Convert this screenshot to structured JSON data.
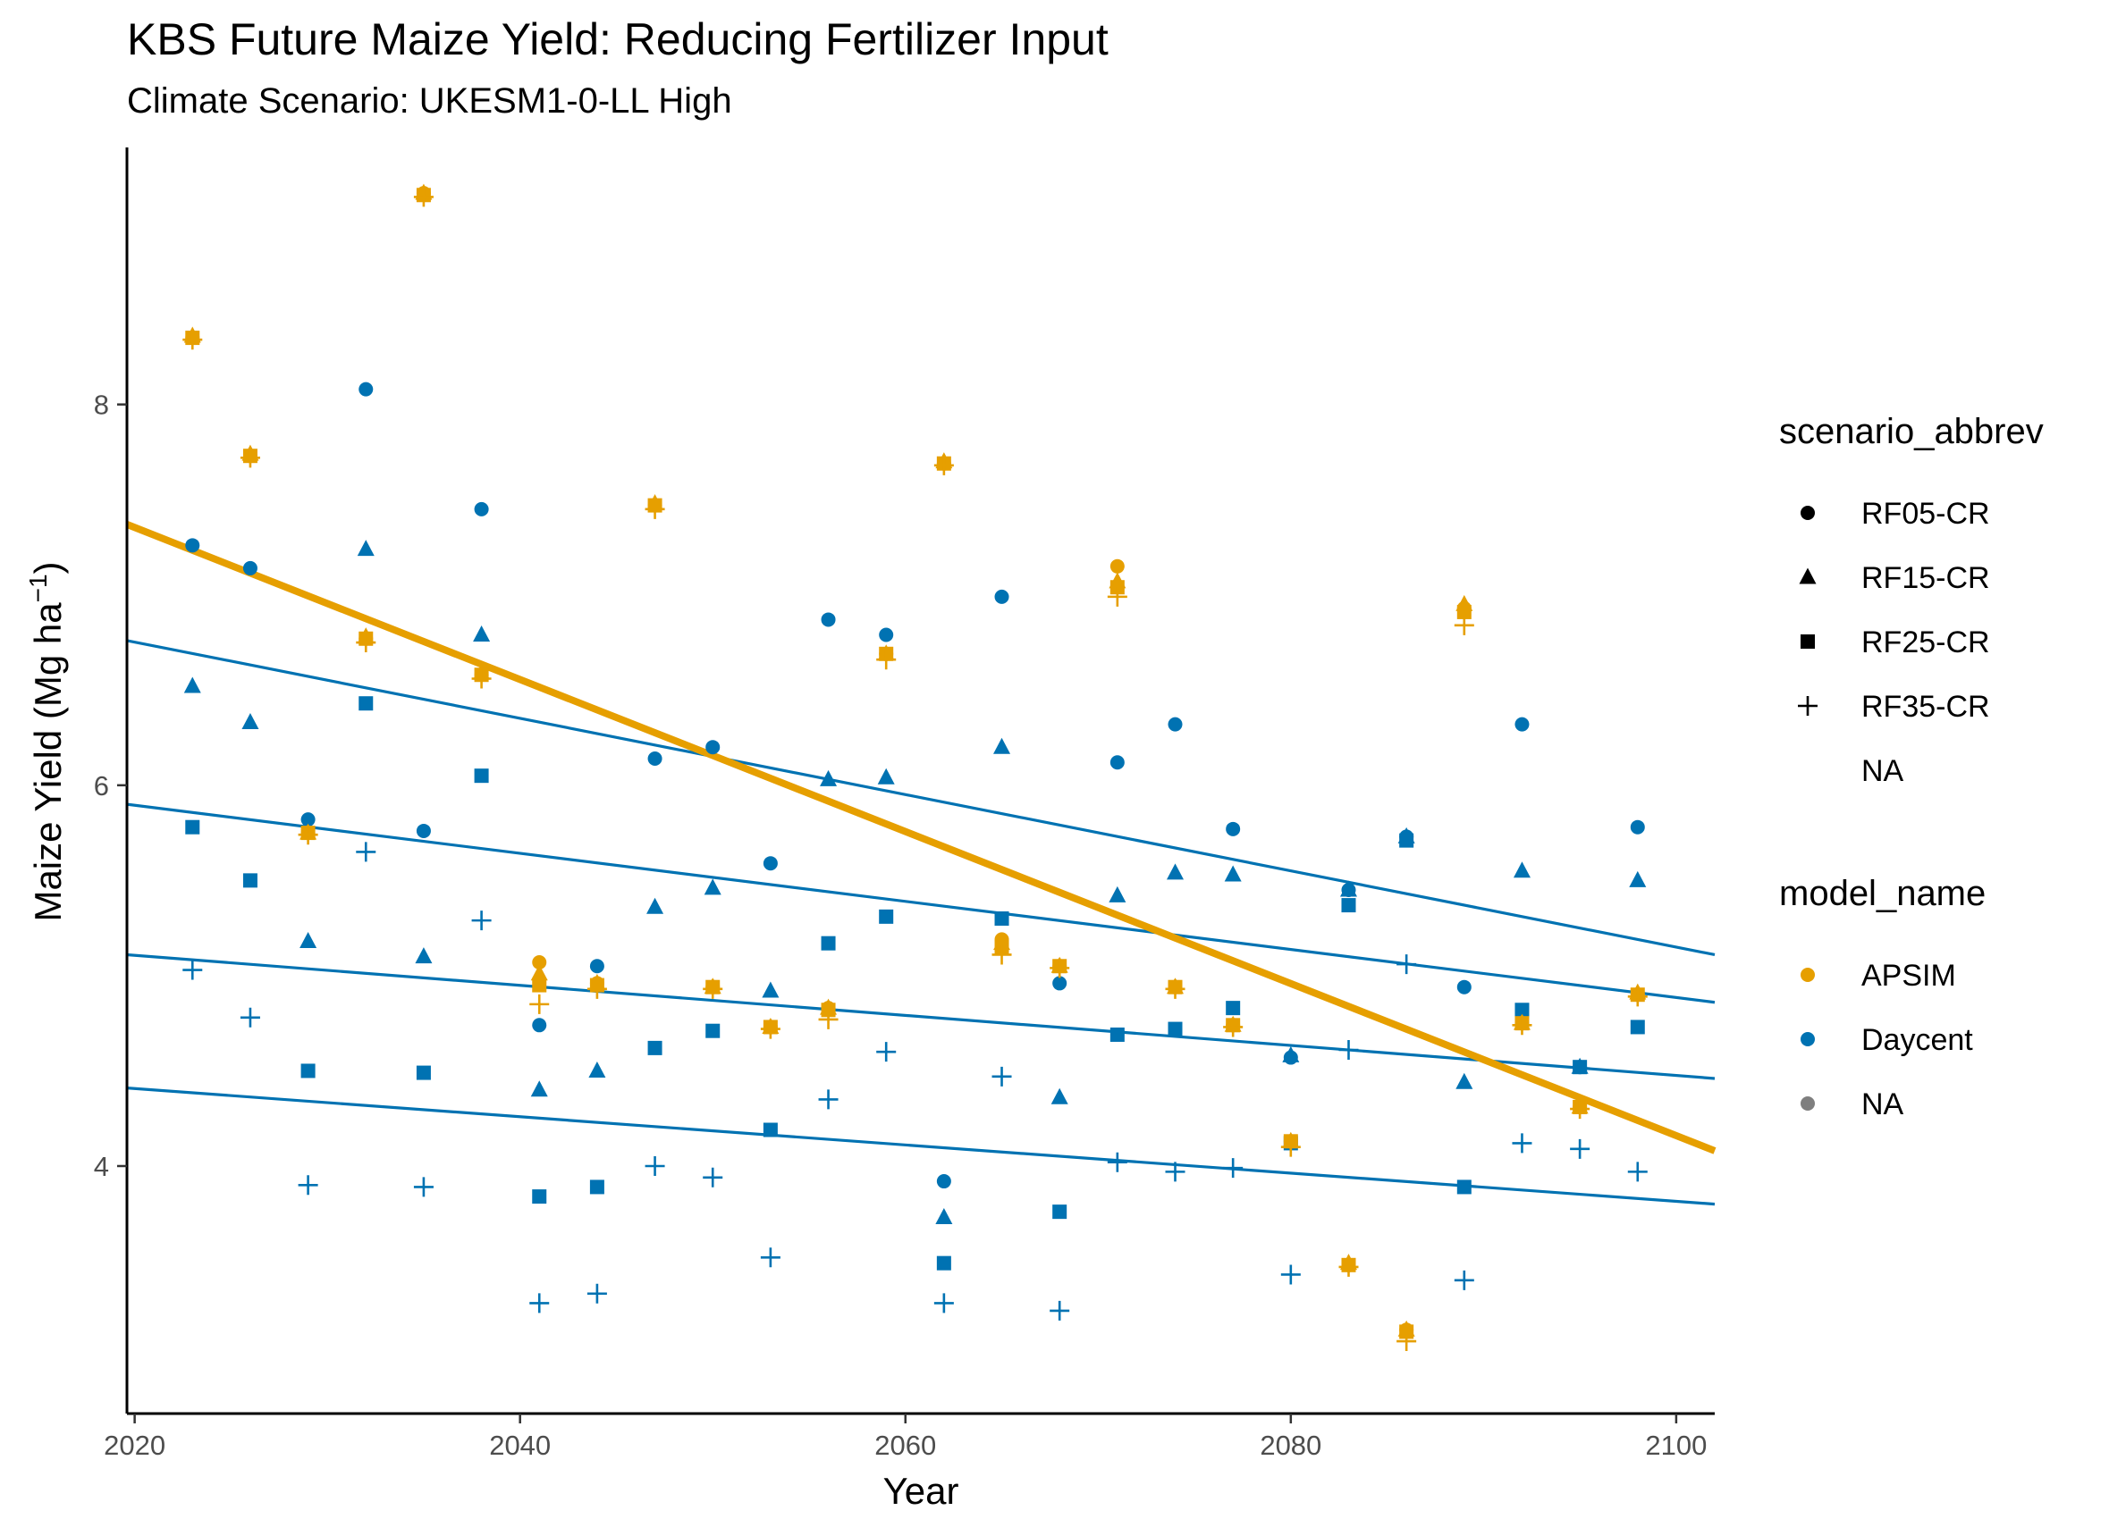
{
  "chart_data": {
    "type": "scatter",
    "title": "KBS Future Maize Yield: Reducing Fertilizer Input",
    "subtitle": "Climate Scenario: UKESM1-0-LL High",
    "xlabel": "Year",
    "ylabel": "Maize Yield (Mg ha",
    "ylabel_unit_sup": "−1",
    "ylabel_tail": ")",
    "xlim": [
      2019.6,
      2102.0
    ],
    "ylim": [
      2.7,
      9.35
    ],
    "xticks": [
      2020,
      2040,
      2060,
      2080,
      2100
    ],
    "xtick_labels": [
      "2020",
      "2040",
      "2060",
      "2080",
      "2100"
    ],
    "yticks": [
      4,
      6,
      8
    ],
    "ytick_labels": [
      "4",
      "6",
      "8"
    ],
    "grid": false,
    "colors": {
      "APSIM": "#E69F00",
      "Daycent": "#0072B2",
      "NA": "#7f7f7f"
    },
    "legends": [
      {
        "title": "scenario_abbrev",
        "items": [
          {
            "label": "RF05-CR",
            "shape": "circle"
          },
          {
            "label": "RF15-CR",
            "shape": "triangle"
          },
          {
            "label": "RF25-CR",
            "shape": "square"
          },
          {
            "label": "RF35-CR",
            "shape": "plus"
          },
          {
            "label": "NA",
            "shape": "none"
          }
        ]
      },
      {
        "title": "model_name",
        "items": [
          {
            "label": "APSIM",
            "color": "#E69F00"
          },
          {
            "label": "Daycent",
            "color": "#0072B2"
          },
          {
            "label": "NA",
            "color": "#7f7f7f"
          }
        ]
      }
    ],
    "legend_position": "right",
    "trend_lines": [
      {
        "model": "APSIM",
        "x": [
          2019.6,
          2102.0
        ],
        "y": [
          7.37,
          4.08
        ],
        "width": "thick"
      },
      {
        "model": "Daycent",
        "scenario": "RF05-CR",
        "x": [
          2019.6,
          2102.0
        ],
        "y": [
          6.76,
          5.11
        ]
      },
      {
        "model": "Daycent",
        "scenario": "RF15-CR",
        "x": [
          2019.6,
          2102.0
        ],
        "y": [
          5.9,
          4.86
        ]
      },
      {
        "model": "Daycent",
        "scenario": "RF25-CR",
        "x": [
          2019.6,
          2102.0
        ],
        "y": [
          5.11,
          4.46
        ]
      },
      {
        "model": "Daycent",
        "scenario": "RF35-CR",
        "x": [
          2019.6,
          2102.0
        ],
        "y": [
          4.41,
          3.8
        ]
      }
    ],
    "series": [
      {
        "model": "APSIM",
        "scenario": "RF05-CR",
        "shape": "circle",
        "x": [
          2023,
          2026,
          2029,
          2032,
          2035,
          2038,
          2041,
          2044,
          2047,
          2050,
          2053,
          2056,
          2059,
          2062,
          2065,
          2068,
          2071,
          2074,
          2077,
          2080,
          2083,
          2086,
          2089,
          2092,
          2095,
          2098
        ],
        "y": [
          8.35,
          7.73,
          5.75,
          6.77,
          9.11,
          6.58,
          5.07,
          4.96,
          7.47,
          4.94,
          4.73,
          4.83,
          6.69,
          7.69,
          5.19,
          5.05,
          7.15,
          4.94,
          4.74,
          4.13,
          3.48,
          3.14,
          6.93,
          4.75,
          4.31,
          4.9
        ]
      },
      {
        "model": "APSIM",
        "scenario": "RF15-CR",
        "shape": "triangle",
        "x": [
          2023,
          2026,
          2029,
          2032,
          2035,
          2038,
          2041,
          2044,
          2047,
          2050,
          2053,
          2056,
          2059,
          2062,
          2065,
          2068,
          2071,
          2074,
          2077,
          2080,
          2083,
          2086,
          2089,
          2092,
          2095,
          2098
        ],
        "y": [
          8.36,
          7.74,
          5.75,
          6.78,
          9.11,
          6.59,
          5.01,
          4.96,
          7.48,
          4.94,
          4.73,
          4.83,
          6.69,
          7.7,
          5.17,
          5.05,
          7.07,
          4.94,
          4.74,
          4.13,
          3.49,
          3.14,
          6.95,
          4.75,
          4.31,
          4.91
        ]
      },
      {
        "model": "APSIM",
        "scenario": "RF25-CR",
        "shape": "square",
        "x": [
          2023,
          2026,
          2029,
          2032,
          2035,
          2038,
          2041,
          2044,
          2047,
          2050,
          2053,
          2056,
          2059,
          2062,
          2065,
          2068,
          2071,
          2074,
          2077,
          2080,
          2083,
          2086,
          2089,
          2092,
          2095,
          2098
        ],
        "y": [
          8.35,
          7.73,
          5.75,
          6.77,
          9.1,
          6.58,
          4.95,
          4.95,
          7.47,
          4.94,
          4.73,
          4.82,
          6.69,
          7.69,
          5.15,
          5.05,
          7.04,
          4.94,
          4.74,
          4.13,
          3.48,
          3.13,
          6.91,
          4.75,
          4.31,
          4.9
        ]
      },
      {
        "model": "APSIM",
        "scenario": "RF35-CR",
        "shape": "plus",
        "x": [
          2023,
          2026,
          2029,
          2032,
          2035,
          2038,
          2041,
          2044,
          2047,
          2050,
          2053,
          2056,
          2059,
          2062,
          2065,
          2068,
          2071,
          2074,
          2077,
          2080,
          2083,
          2086,
          2089,
          2092,
          2095,
          2098
        ],
        "y": [
          8.34,
          7.72,
          5.74,
          6.75,
          9.09,
          6.56,
          4.85,
          4.93,
          7.45,
          4.93,
          4.72,
          4.77,
          6.66,
          7.68,
          5.11,
          5.04,
          6.99,
          4.93,
          4.73,
          4.1,
          3.47,
          3.08,
          6.84,
          4.74,
          4.3,
          4.89
        ]
      },
      {
        "model": "Daycent",
        "scenario": "RF05-CR",
        "shape": "circle",
        "x": [
          2023,
          2026,
          2029,
          2032,
          2035,
          2038,
          2041,
          2044,
          2047,
          2050,
          2053,
          2056,
          2059,
          2062,
          2065,
          2068,
          2071,
          2074,
          2077,
          2080,
          2083,
          2086,
          2089,
          2092,
          2095,
          2098
        ],
        "y": [
          7.26,
          7.14,
          5.82,
          8.08,
          5.76,
          7.45,
          4.74,
          5.05,
          6.14,
          6.2,
          5.59,
          6.87,
          6.79,
          3.92,
          6.99,
          4.96,
          6.12,
          6.32,
          5.77,
          4.57,
          5.45,
          5.73,
          4.94,
          6.32,
          4.52,
          5.78
        ]
      },
      {
        "model": "Daycent",
        "scenario": "RF15-CR",
        "shape": "triangle",
        "x": [
          2023,
          2026,
          2029,
          2032,
          2035,
          2038,
          2041,
          2044,
          2047,
          2050,
          2053,
          2056,
          2059,
          2062,
          2065,
          2068,
          2071,
          2074,
          2077,
          2080,
          2083,
          2086,
          2089,
          2092,
          2095,
          2098
        ],
        "y": [
          6.52,
          6.33,
          5.18,
          7.24,
          5.1,
          6.79,
          4.4,
          4.5,
          5.36,
          5.46,
          4.92,
          6.03,
          6.04,
          3.73,
          6.2,
          4.36,
          5.42,
          5.54,
          5.53,
          4.58,
          5.45,
          5.73,
          4.44,
          5.55,
          4.52,
          5.5
        ]
      },
      {
        "model": "Daycent",
        "scenario": "RF25-CR",
        "shape": "square",
        "x": [
          2023,
          2026,
          2029,
          2032,
          2035,
          2038,
          2041,
          2044,
          2047,
          2050,
          2053,
          2056,
          2059,
          2062,
          2065,
          2068,
          2071,
          2074,
          2077,
          2080,
          2083,
          2086,
          2089,
          2092,
          2095,
          2098
        ],
        "y": [
          5.78,
          5.5,
          4.5,
          6.43,
          4.49,
          6.05,
          3.84,
          3.89,
          4.62,
          4.71,
          4.19,
          5.17,
          5.31,
          3.49,
          5.3,
          3.76,
          4.69,
          4.72,
          4.83,
          4.12,
          5.37,
          5.71,
          3.89,
          4.82,
          4.52,
          4.73
        ]
      },
      {
        "model": "Daycent",
        "scenario": "RF35-CR",
        "shape": "plus",
        "x": [
          2023,
          2026,
          2029,
          2032,
          2035,
          2038,
          2041,
          2044,
          2047,
          2050,
          2053,
          2056,
          2059,
          2062,
          2065,
          2068,
          2071,
          2074,
          2077,
          2080,
          2083,
          2086,
          2089,
          2092,
          2095,
          2098
        ],
        "y": [
          5.03,
          4.78,
          3.9,
          5.65,
          3.89,
          5.29,
          3.28,
          3.33,
          4.0,
          3.94,
          3.52,
          4.35,
          4.6,
          3.28,
          4.47,
          3.24,
          4.02,
          3.97,
          3.99,
          3.43,
          4.61,
          5.06,
          3.4,
          4.12,
          4.09,
          3.97
        ]
      }
    ]
  }
}
